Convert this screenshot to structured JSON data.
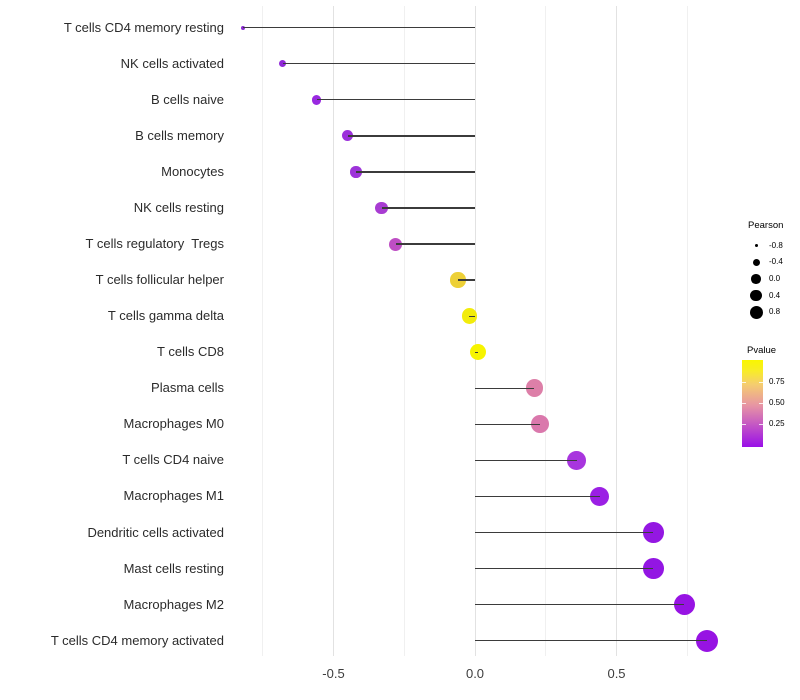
{
  "chart_data": {
    "type": "scatter",
    "subtype": "lollipop",
    "title": "",
    "xlabel": "",
    "ylabel": "",
    "categories": [
      "T cells CD4 memory resting",
      "NK cells activated",
      "B cells naive",
      "B cells memory",
      "Monocytes",
      "NK cells resting",
      "T cells regulatory  Tregs",
      "T cells follicular helper",
      "T cells gamma delta",
      "T cells CD8",
      "Plasma cells",
      "Macrophages M0",
      "T cells CD4 naive",
      "Macrophages M1",
      "Dendritic cells activated",
      "Mast cells resting",
      "Macrophages M2",
      "T cells CD4 memory activated"
    ],
    "series": [
      {
        "name": "Pearson",
        "values": [
          -0.82,
          -0.68,
          -0.56,
          -0.45,
          -0.42,
          -0.33,
          -0.28,
          -0.06,
          -0.02,
          0.01,
          0.21,
          0.23,
          0.36,
          0.44,
          0.63,
          0.63,
          0.74,
          0.82
        ]
      }
    ],
    "point_colors": [
      "#8B2BD3",
      "#9029D8",
      "#9929E0",
      "#9C30DB",
      "#9D34D9",
      "#A83CD2",
      "#BE4EC4",
      "#EDD037",
      "#F2EC0B",
      "#F7F400",
      "#DD7FA8",
      "#DA78AC",
      "#A835DE",
      "#9B1FE4",
      "#9417E2",
      "#9316E3",
      "#9713E3",
      "#9713E3"
    ],
    "x_axis": {
      "tick_labels": [
        "-0.5",
        "0.0",
        "0.5"
      ],
      "tick_values": [
        -0.5,
        0.0,
        0.5
      ],
      "minor_tick_values": [
        -0.75,
        -0.25,
        0.25,
        0.75
      ],
      "range": [
        -0.86,
        0.86
      ]
    },
    "grid": "vertical-only",
    "legend_position": "right",
    "legends": {
      "size": {
        "title": "Pearson",
        "entries": [
          {
            "label": "-0.8",
            "value": -0.8
          },
          {
            "label": "-0.4",
            "value": -0.4
          },
          {
            "label": "0.0",
            "value": 0.0
          },
          {
            "label": "0.4",
            "value": 0.4
          },
          {
            "label": "0.8",
            "value": 0.8
          }
        ]
      },
      "color": {
        "title": "Pvalue",
        "tick_labels": [
          "0.75",
          "0.50",
          "0.25"
        ],
        "gradient_stops": [
          "#F9F600 0%",
          "#F8ED25 12%",
          "#F5CD6F 28%",
          "#E795A3 52%",
          "#C355C5 75%",
          "#990FE8 100%"
        ]
      }
    }
  },
  "colors": {
    "background": "#FFFFFF",
    "stick": "#3B3B3B",
    "grid_major": "#E2E2E2",
    "grid_minor": "#F0F0F0",
    "axis_text": "#3D3D3D",
    "legend_text": "#000000",
    "legend_dot": "#000000"
  }
}
